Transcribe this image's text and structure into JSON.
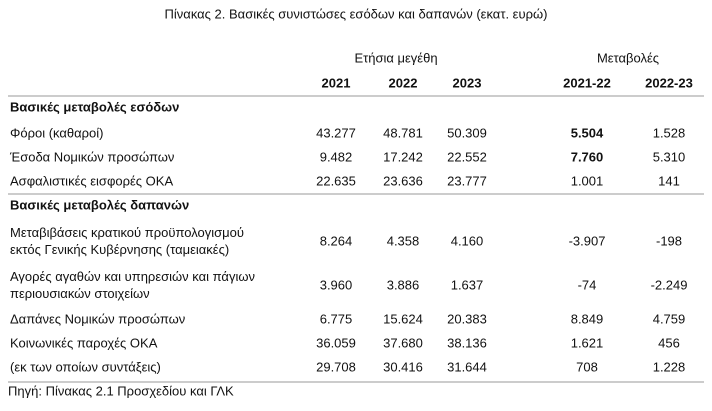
{
  "title": "Πίνακας 2. Βασικές συνιστώσες εσόδων και δαπανών (εκατ. ευρώ)",
  "column_groups": [
    "Ετήσια μεγέθη",
    "Μεταβολές"
  ],
  "columns": [
    "2021",
    "2022",
    "2023",
    "2021-22",
    "2022-23"
  ],
  "sections": [
    {
      "heading": "Βασικές μεταβολές εσόδων",
      "rows": [
        {
          "label": [
            "Φόροι (καθαροί)"
          ],
          "values": [
            "43.277",
            "48.781",
            "50.309",
            "5.504",
            "1.528"
          ],
          "bold_cells": [
            3
          ]
        },
        {
          "label": [
            "Έσοδα Νομικών προσώπων"
          ],
          "values": [
            "9.482",
            "17.242",
            "22.552",
            "7.760",
            "5.310"
          ],
          "bold_cells": [
            3
          ]
        },
        {
          "label": [
            "Ασφαλιστικές εισφορές ΟΚΑ"
          ],
          "values": [
            "22.635",
            "23.636",
            "23.777",
            "1.001",
            "141"
          ],
          "bold_cells": []
        }
      ]
    },
    {
      "heading": "Βασικές μεταβολές δαπανών",
      "rows": [
        {
          "label": [
            "Μεταβιβάσεις κρατικού προϋπολογισμού",
            "εκτός Γενικής Κυβέρνησης (ταμειακές)"
          ],
          "values": [
            "8.264",
            "4.358",
            "4.160",
            "-3.907",
            "-198"
          ],
          "bold_cells": []
        },
        {
          "label": [
            "Αγορές αγαθών και υπηρεσιών και πάγιων",
            "περιουσιακών στοιχείων"
          ],
          "values": [
            "3.960",
            "3.886",
            "1.637",
            "-74",
            "-2.249"
          ],
          "bold_cells": []
        },
        {
          "label": [
            "Δαπάνες Νομικών προσώπων"
          ],
          "values": [
            "6.775",
            "15.624",
            "20.383",
            "8.849",
            "4.759"
          ],
          "bold_cells": []
        },
        {
          "label": [
            "Κοινωνικές παροχές ΟΚΑ"
          ],
          "values": [
            "36.059",
            "37.680",
            "38.136",
            "1.621",
            "456"
          ],
          "bold_cells": []
        },
        {
          "label": [
            "(εκ των οποίων συντάξεις)"
          ],
          "values": [
            "29.708",
            "30.416",
            "31.644",
            "708",
            "1.228"
          ],
          "bold_cells": []
        }
      ]
    }
  ],
  "source": "Πηγή: Πίνακας 2.1 Προσχεδίου και ΓΛΚ"
}
